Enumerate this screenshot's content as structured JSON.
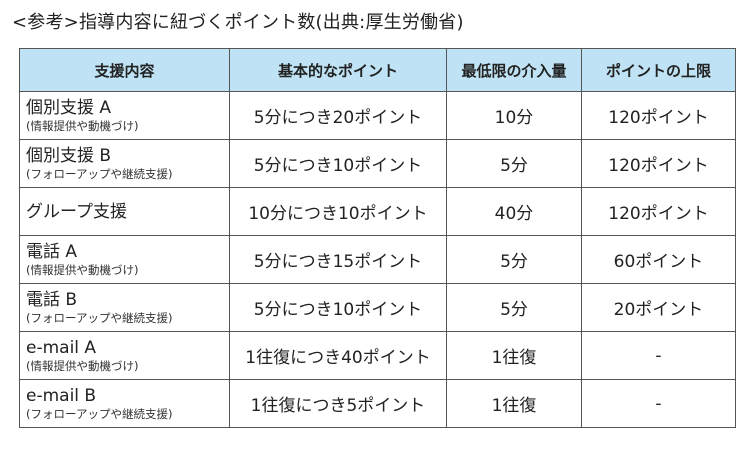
{
  "title": "<参考>指導内容に紐づくポイント数(出典:厚生労働省)",
  "table": {
    "headers": [
      "支援内容",
      "基本的なポイント",
      "最低限の介入量",
      "ポイントの上限"
    ],
    "rows": [
      {
        "name": "個別支援 A",
        "sub": "(情報提供や動機づけ)",
        "basic": "5分につき20ポイント",
        "minimum": "10分",
        "cap": "120ポイント"
      },
      {
        "name": "個別支援 B",
        "sub": "(フォローアップや継続支援)",
        "basic": "5分につき10ポイント",
        "minimum": "5分",
        "cap": "120ポイント"
      },
      {
        "name": "グループ支援",
        "sub": "",
        "basic": "10分につき10ポイント",
        "minimum": "40分",
        "cap": "120ポイント"
      },
      {
        "name": "電話 A",
        "sub": "(情報提供や動機づけ)",
        "basic": "5分につき15ポイント",
        "minimum": "5分",
        "cap": "60ポイント"
      },
      {
        "name": "電話 B",
        "sub": "(フォローアップや継続支援)",
        "basic": "5分につき10ポイント",
        "minimum": "5分",
        "cap": "20ポイント"
      },
      {
        "name": "e-mail A",
        "sub": "(情報提供や動機づけ)",
        "basic": "1往復につき40ポイント",
        "minimum": "1往復",
        "cap": "-"
      },
      {
        "name": "e-mail B",
        "sub": "(フォローアップや継続支援)",
        "basic": "1往復につき5ポイント",
        "minimum": "1往復",
        "cap": "-"
      }
    ]
  },
  "colors": {
    "header_bg": "#bfe3f4",
    "border": "#555555",
    "text": "#222222"
  }
}
